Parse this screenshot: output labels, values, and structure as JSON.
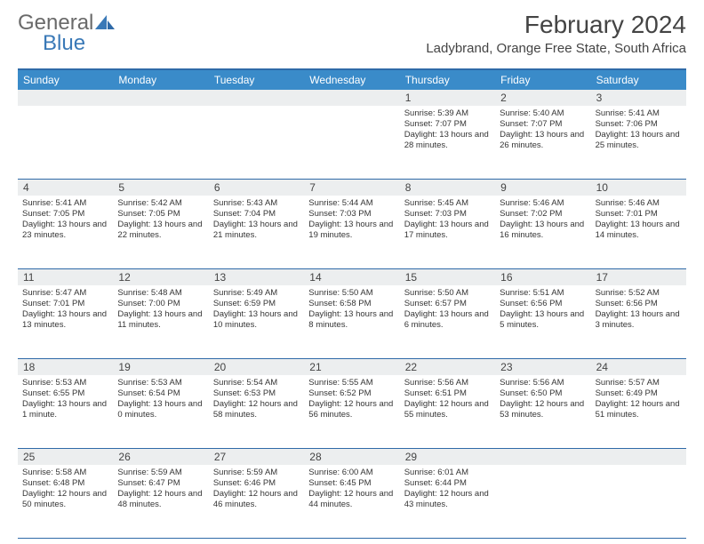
{
  "brand": {
    "part1": "General",
    "part2": "Blue"
  },
  "title": "February 2024",
  "location": "Ladybrand, Orange Free State, South Africa",
  "colors": {
    "header_bar": "#3a8bc9",
    "border": "#2f6aa8",
    "daynum_bg": "#eceeef",
    "text": "#353535",
    "logo_blue": "#3a79b7"
  },
  "dow": [
    "Sunday",
    "Monday",
    "Tuesday",
    "Wednesday",
    "Thursday",
    "Friday",
    "Saturday"
  ],
  "weeks": [
    [
      null,
      null,
      null,
      null,
      {
        "n": "1",
        "sr": "5:39 AM",
        "ss": "7:07 PM",
        "dl": "13 hours and 28 minutes."
      },
      {
        "n": "2",
        "sr": "5:40 AM",
        "ss": "7:07 PM",
        "dl": "13 hours and 26 minutes."
      },
      {
        "n": "3",
        "sr": "5:41 AM",
        "ss": "7:06 PM",
        "dl": "13 hours and 25 minutes."
      }
    ],
    [
      {
        "n": "4",
        "sr": "5:41 AM",
        "ss": "7:05 PM",
        "dl": "13 hours and 23 minutes."
      },
      {
        "n": "5",
        "sr": "5:42 AM",
        "ss": "7:05 PM",
        "dl": "13 hours and 22 minutes."
      },
      {
        "n": "6",
        "sr": "5:43 AM",
        "ss": "7:04 PM",
        "dl": "13 hours and 21 minutes."
      },
      {
        "n": "7",
        "sr": "5:44 AM",
        "ss": "7:03 PM",
        "dl": "13 hours and 19 minutes."
      },
      {
        "n": "8",
        "sr": "5:45 AM",
        "ss": "7:03 PM",
        "dl": "13 hours and 17 minutes."
      },
      {
        "n": "9",
        "sr": "5:46 AM",
        "ss": "7:02 PM",
        "dl": "13 hours and 16 minutes."
      },
      {
        "n": "10",
        "sr": "5:46 AM",
        "ss": "7:01 PM",
        "dl": "13 hours and 14 minutes."
      }
    ],
    [
      {
        "n": "11",
        "sr": "5:47 AM",
        "ss": "7:01 PM",
        "dl": "13 hours and 13 minutes."
      },
      {
        "n": "12",
        "sr": "5:48 AM",
        "ss": "7:00 PM",
        "dl": "13 hours and 11 minutes."
      },
      {
        "n": "13",
        "sr": "5:49 AM",
        "ss": "6:59 PM",
        "dl": "13 hours and 10 minutes."
      },
      {
        "n": "14",
        "sr": "5:50 AM",
        "ss": "6:58 PM",
        "dl": "13 hours and 8 minutes."
      },
      {
        "n": "15",
        "sr": "5:50 AM",
        "ss": "6:57 PM",
        "dl": "13 hours and 6 minutes."
      },
      {
        "n": "16",
        "sr": "5:51 AM",
        "ss": "6:56 PM",
        "dl": "13 hours and 5 minutes."
      },
      {
        "n": "17",
        "sr": "5:52 AM",
        "ss": "6:56 PM",
        "dl": "13 hours and 3 minutes."
      }
    ],
    [
      {
        "n": "18",
        "sr": "5:53 AM",
        "ss": "6:55 PM",
        "dl": "13 hours and 1 minute."
      },
      {
        "n": "19",
        "sr": "5:53 AM",
        "ss": "6:54 PM",
        "dl": "13 hours and 0 minutes."
      },
      {
        "n": "20",
        "sr": "5:54 AM",
        "ss": "6:53 PM",
        "dl": "12 hours and 58 minutes."
      },
      {
        "n": "21",
        "sr": "5:55 AM",
        "ss": "6:52 PM",
        "dl": "12 hours and 56 minutes."
      },
      {
        "n": "22",
        "sr": "5:56 AM",
        "ss": "6:51 PM",
        "dl": "12 hours and 55 minutes."
      },
      {
        "n": "23",
        "sr": "5:56 AM",
        "ss": "6:50 PM",
        "dl": "12 hours and 53 minutes."
      },
      {
        "n": "24",
        "sr": "5:57 AM",
        "ss": "6:49 PM",
        "dl": "12 hours and 51 minutes."
      }
    ],
    [
      {
        "n": "25",
        "sr": "5:58 AM",
        "ss": "6:48 PM",
        "dl": "12 hours and 50 minutes."
      },
      {
        "n": "26",
        "sr": "5:59 AM",
        "ss": "6:47 PM",
        "dl": "12 hours and 48 minutes."
      },
      {
        "n": "27",
        "sr": "5:59 AM",
        "ss": "6:46 PM",
        "dl": "12 hours and 46 minutes."
      },
      {
        "n": "28",
        "sr": "6:00 AM",
        "ss": "6:45 PM",
        "dl": "12 hours and 44 minutes."
      },
      {
        "n": "29",
        "sr": "6:01 AM",
        "ss": "6:44 PM",
        "dl": "12 hours and 43 minutes."
      },
      null,
      null
    ]
  ],
  "labels": {
    "sunrise": "Sunrise:",
    "sunset": "Sunset:",
    "daylight": "Daylight:"
  }
}
